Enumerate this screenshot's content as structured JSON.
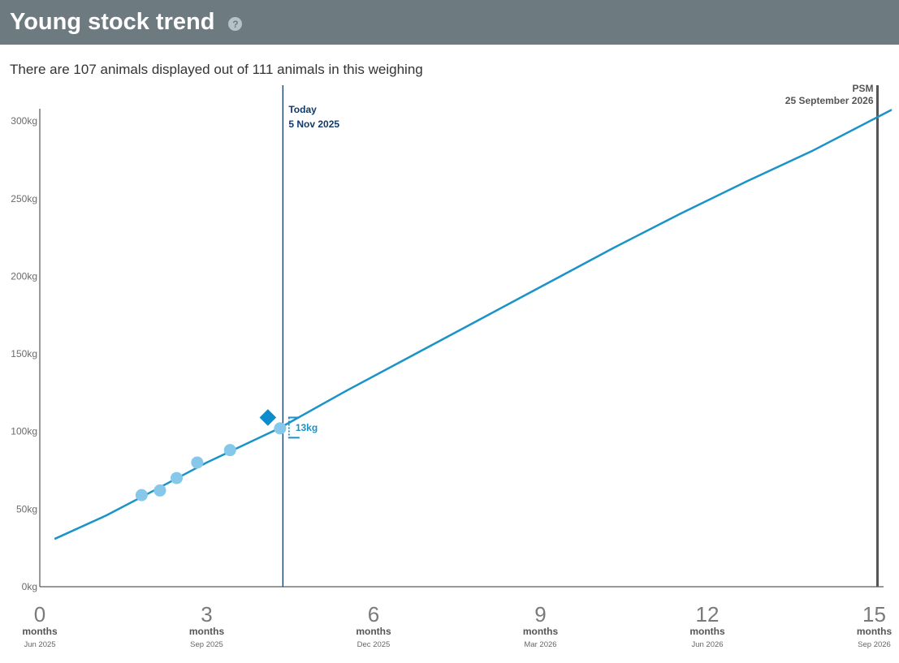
{
  "header": {
    "title": "Young stock trend",
    "help_icon_glyph": "?"
  },
  "subtitle": "There are 107 animals displayed out of 111 animals in this weighing",
  "chart_data": {
    "type": "line",
    "y_ticks": [
      "0kg",
      "50kg",
      "100kg",
      "150kg",
      "200kg",
      "250kg",
      "300kg"
    ],
    "y_tick_values": [
      0,
      50,
      100,
      150,
      200,
      250,
      300
    ],
    "ylim": [
      0,
      300
    ],
    "x_unit": "months",
    "xlim": [
      0,
      15.3
    ],
    "x_ticks": [
      {
        "value": 0,
        "label": "0",
        "unit": "months",
        "date": "Jun 2025"
      },
      {
        "value": 3,
        "label": "3",
        "unit": "months",
        "date": "Sep 2025"
      },
      {
        "value": 6,
        "label": "6",
        "unit": "months",
        "date": "Dec 2025"
      },
      {
        "value": 9,
        "label": "9",
        "unit": "months",
        "date": "Mar 2026"
      },
      {
        "value": 12,
        "label": "12",
        "unit": "months",
        "date": "Jun 2026"
      },
      {
        "value": 15,
        "label": "15",
        "unit": "months",
        "date": "Sep 2026"
      }
    ],
    "target_curve": {
      "x": [
        0.28,
        1.2,
        2.0,
        3.0,
        4.3,
        5.5,
        6.7,
        7.9,
        9.1,
        10.3,
        11.5,
        12.7,
        13.9,
        15.3
      ],
      "y": [
        31,
        46,
        61,
        80,
        102,
        126,
        149,
        172,
        195,
        218,
        240,
        261,
        281,
        307
      ],
      "color": "#1a93c8"
    },
    "weighings": {
      "x": [
        1.83,
        2.16,
        2.46,
        2.83,
        3.42,
        4.32
      ],
      "y": [
        59,
        62,
        70,
        80,
        88,
        102
      ],
      "color": "#85c8ea"
    },
    "average": {
      "x": 4.1,
      "y": 109,
      "color": "#0c8ccd"
    },
    "difference": {
      "label": "13kg",
      "x": 4.45,
      "y_low": 96,
      "y_high": 109
    },
    "today": {
      "x": 4.37,
      "label": "Today",
      "date": "5 Nov 2025",
      "color": "#0f3a6b"
    },
    "psm": {
      "x": 15,
      "label": "PSM",
      "date": "25 September 2026",
      "color": "#555555"
    },
    "grid": false
  }
}
